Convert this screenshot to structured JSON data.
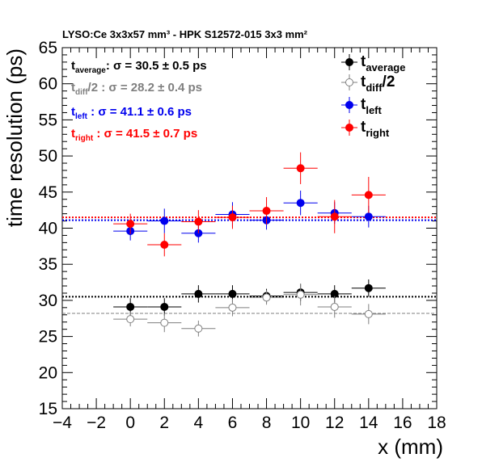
{
  "chart_data": {
    "type": "scatter",
    "title": "LYSO:Ce 3x3x57 mm³ - HPK S12572-015 3x3 mm²",
    "xlabel": "x (mm)",
    "ylabel": "time resolution (ps)",
    "xlim": [
      -4,
      18
    ],
    "ylim": [
      15,
      65
    ],
    "x_ticks": [
      -4,
      -2,
      0,
      2,
      4,
      6,
      8,
      10,
      12,
      14,
      16,
      18
    ],
    "y_ticks": [
      15,
      20,
      25,
      30,
      35,
      40,
      45,
      50,
      55,
      60,
      65
    ],
    "x_error": 1,
    "grid": false,
    "legend_position": "top-right",
    "series": [
      {
        "key": "average",
        "color": "#000000",
        "marker": "filled-circle",
        "x": [
          0,
          2,
          4,
          6,
          8,
          10,
          12,
          14
        ],
        "y": [
          29.1,
          29.1,
          30.9,
          30.9,
          30.6,
          31.1,
          30.9,
          31.7
        ],
        "yerr": [
          1.2,
          1.2,
          1.2,
          1.2,
          1.0,
          1.2,
          1.2,
          1.2
        ],
        "fit": {
          "value": 30.5,
          "error": 0.5
        },
        "fit_line": {
          "style": "dotted",
          "width": 2,
          "color": "#000000"
        },
        "legend_main": "t",
        "legend_sub": "average",
        "stat_label": {
          "main": "t",
          "sub": "average",
          "tail": ":  σ = 30.5  ± 0.5 ps"
        }
      },
      {
        "key": "diff",
        "color": "#7f7f7f",
        "marker": "open-circle",
        "x": [
          0,
          2,
          4,
          6,
          8,
          10,
          12,
          14
        ],
        "y": [
          27.4,
          26.9,
          26.1,
          29.0,
          30.4,
          30.8,
          29.1,
          28.1
        ],
        "yerr": [
          1.0,
          1.3,
          1.1,
          1.2,
          1.0,
          1.5,
          1.5,
          1.4
        ],
        "fit": {
          "value": 28.2,
          "error": 0.4
        },
        "fit_line": {
          "style": "dashed",
          "width": 1,
          "color": "#7f7f7f"
        },
        "legend_main": "t",
        "legend_sub": "diff",
        "legend_tail": "/2",
        "stat_label": {
          "main": "t",
          "sub": "diff",
          "tail": "/2 :  σ = 28.2  ± 0.4 ps"
        }
      },
      {
        "key": "left",
        "color": "#0000ee",
        "marker": "filled-circle",
        "x": [
          0,
          2,
          4,
          6,
          8,
          10,
          12,
          14
        ],
        "y": [
          39.6,
          41.0,
          39.3,
          41.9,
          41.1,
          43.5,
          42.1,
          41.6
        ],
        "yerr": [
          1.3,
          1.7,
          1.3,
          1.7,
          1.3,
          1.7,
          1.5,
          1.5
        ],
        "fit": {
          "value": 41.1,
          "error": 0.6
        },
        "fit_line": {
          "style": "dotted",
          "width": 2,
          "color": "#0000ee"
        },
        "legend_main": "t",
        "legend_sub": "left",
        "stat_label": {
          "main": "t",
          "sub": "left",
          "tail": "  :  σ = 41.1  ± 0.6 ps"
        }
      },
      {
        "key": "right",
        "color": "#ff0000",
        "marker": "filled-circle",
        "x": [
          0,
          2,
          4,
          6,
          8,
          10,
          12,
          14
        ],
        "y": [
          40.6,
          37.7,
          40.9,
          41.5,
          42.4,
          48.3,
          41.6,
          44.6
        ],
        "yerr": [
          1.4,
          1.6,
          1.6,
          1.6,
          1.9,
          2.2,
          2.3,
          2.5
        ],
        "fit": {
          "value": 41.5,
          "error": 0.7
        },
        "fit_line": {
          "style": "dotted",
          "width": 2,
          "color": "#ff0000"
        },
        "legend_main": "t",
        "legend_sub": "right",
        "stat_label": {
          "main": "t",
          "sub": "right",
          "tail": "  :  σ = 41.5  ± 0.7 ps"
        }
      }
    ]
  }
}
